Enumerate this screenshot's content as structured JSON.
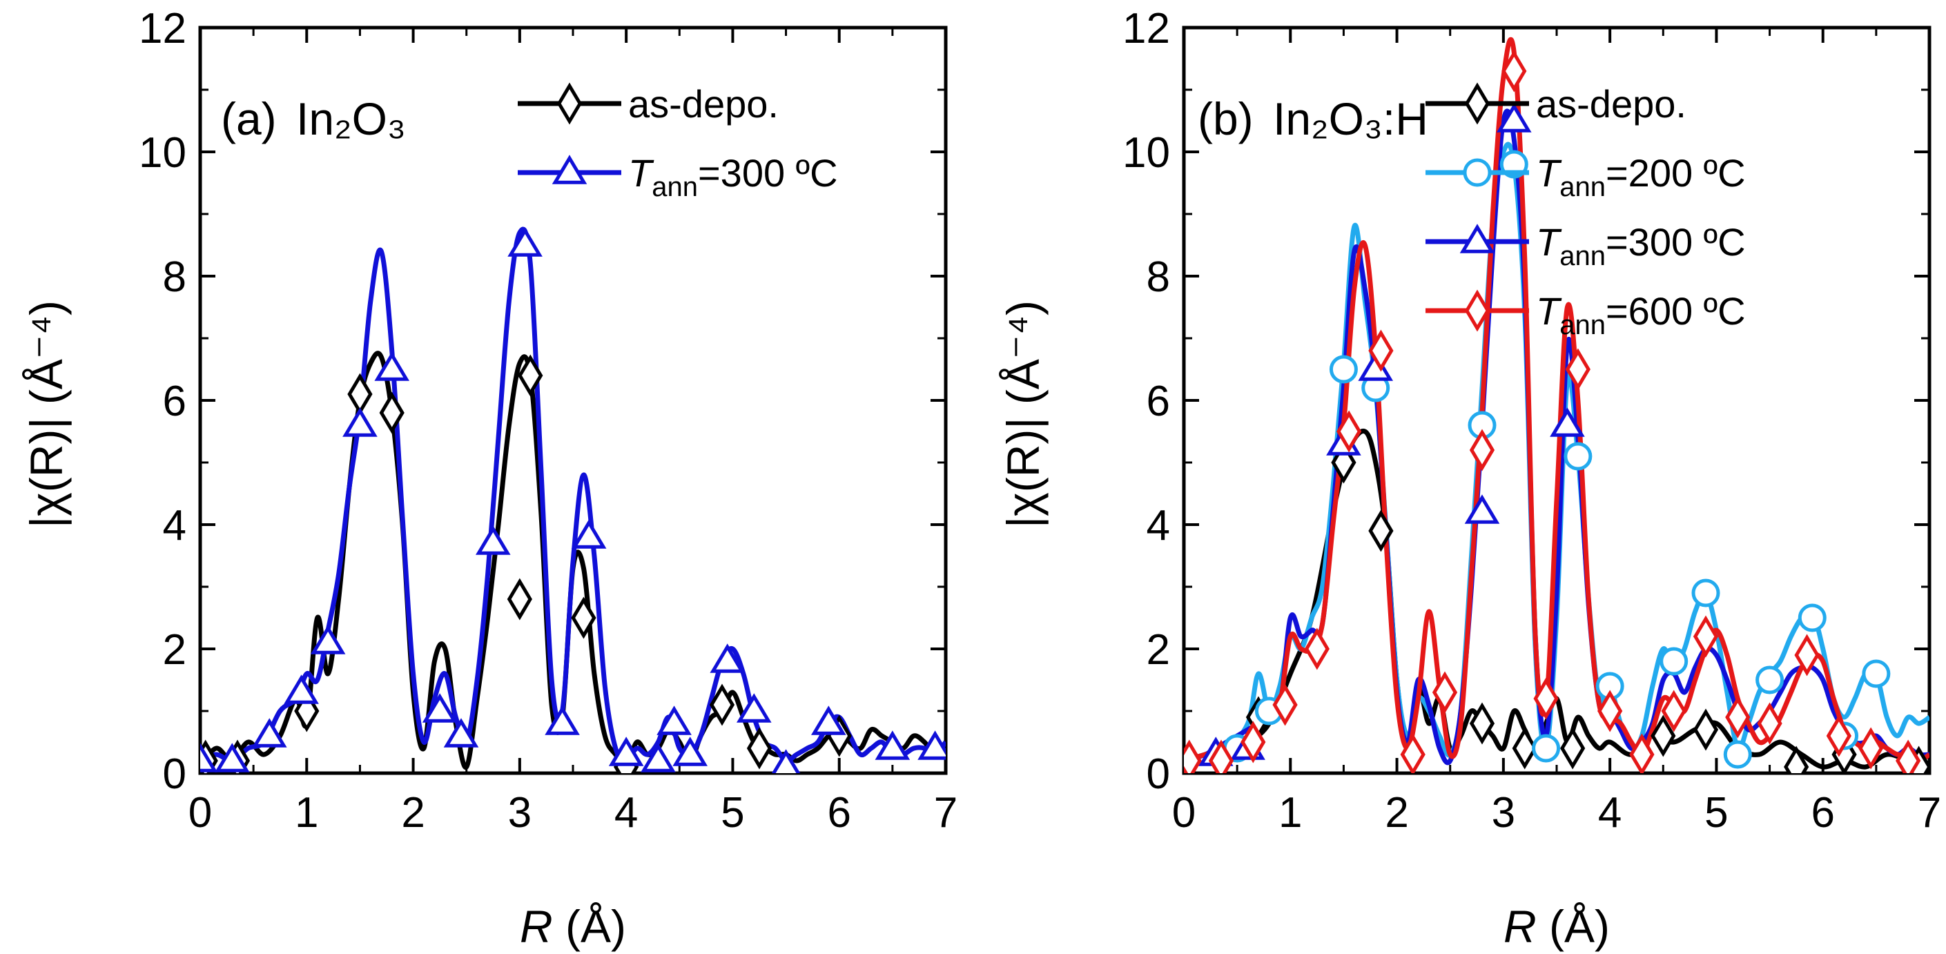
{
  "chart_data": [
    {
      "type": "line",
      "panel_label": "(a)",
      "panel_material": "In₂O₃",
      "xlabel": "R (Å)",
      "xlabel_var": "R",
      "xlabel_unit": "(Å)",
      "ylabel": "|χ(R)| (Å⁻⁴)",
      "xlim": [
        0,
        7
      ],
      "ylim": [
        0,
        12
      ],
      "xticks": [
        "0",
        "1",
        "2",
        "3",
        "4",
        "5",
        "6",
        "7"
      ],
      "yticks": [
        "0",
        "2",
        "4",
        "6",
        "8",
        "10",
        "12"
      ],
      "legend_position": "top-right",
      "series": [
        {
          "name": "as-depo.",
          "label_main": "as-depo.",
          "color": "#000000",
          "marker": "diamond",
          "x": [
            0.0,
            0.15,
            0.3,
            0.45,
            0.6,
            0.75,
            0.9,
            1.0,
            1.1,
            1.2,
            1.3,
            1.4,
            1.5,
            1.6,
            1.7,
            1.8,
            1.9,
            2.0,
            2.1,
            2.2,
            2.3,
            2.4,
            2.5,
            2.6,
            2.7,
            2.8,
            2.9,
            3.0,
            3.1,
            3.2,
            3.3,
            3.4,
            3.5,
            3.6,
            3.7,
            3.8,
            3.9,
            4.0,
            4.1,
            4.2,
            4.3,
            4.4,
            4.5,
            4.6,
            4.7,
            4.8,
            4.9,
            5.0,
            5.1,
            5.2,
            5.3,
            5.4,
            5.5,
            5.6,
            5.7,
            5.8,
            5.9,
            6.0,
            6.1,
            6.2,
            6.3,
            6.4,
            6.5,
            6.6,
            6.7,
            6.8,
            6.9,
            7.0
          ],
          "y": [
            0.1,
            0.4,
            0.2,
            0.5,
            0.3,
            0.6,
            1.2,
            0.8,
            2.5,
            1.6,
            2.8,
            4.6,
            6.0,
            6.6,
            6.7,
            5.8,
            4.0,
            1.3,
            0.4,
            1.8,
            2.0,
            0.8,
            0.1,
            1.2,
            2.5,
            4.0,
            5.6,
            6.6,
            6.4,
            4.2,
            1.1,
            0.9,
            3.3,
            3.3,
            1.6,
            0.6,
            0.3,
            0.1,
            0.5,
            0.3,
            0.4,
            0.7,
            0.5,
            0.2,
            0.6,
            0.9,
            1.0,
            1.3,
            0.9,
            0.5,
            0.4,
            0.3,
            0.3,
            0.2,
            0.3,
            0.4,
            0.6,
            0.7,
            0.5,
            0.4,
            0.7,
            0.6,
            0.5,
            0.4,
            0.6,
            0.5,
            0.3,
            0.5
          ],
          "marker_x": [
            0.05,
            0.35,
            1.0,
            1.5,
            1.8,
            3.0,
            3.1,
            3.6,
            4.0,
            4.9,
            5.25,
            6.0
          ],
          "marker_y": [
            0.2,
            0.2,
            1.0,
            6.1,
            5.8,
            2.8,
            6.4,
            2.5,
            0.1,
            1.1,
            0.4,
            0.6
          ]
        },
        {
          "name": "Tann=300 ºC",
          "label_var": "T",
          "label_sub": "ann",
          "label_rest": "=300 ºC",
          "color": "#1010d8",
          "marker": "triangle",
          "x": [
            0.0,
            0.15,
            0.3,
            0.45,
            0.6,
            0.75,
            0.9,
            1.0,
            1.1,
            1.2,
            1.3,
            1.4,
            1.5,
            1.6,
            1.7,
            1.8,
            1.9,
            2.0,
            2.1,
            2.2,
            2.3,
            2.4,
            2.5,
            2.6,
            2.7,
            2.8,
            2.9,
            3.0,
            3.1,
            3.2,
            3.3,
            3.4,
            3.5,
            3.6,
            3.7,
            3.8,
            3.9,
            4.0,
            4.1,
            4.2,
            4.3,
            4.4,
            4.5,
            4.6,
            4.7,
            4.8,
            4.9,
            5.0,
            5.1,
            5.2,
            5.3,
            5.4,
            5.5,
            5.6,
            5.7,
            5.8,
            5.9,
            6.0,
            6.1,
            6.2,
            6.3,
            6.4,
            6.5,
            6.6,
            6.7,
            6.8,
            6.9,
            7.0
          ],
          "y": [
            0.2,
            0.3,
            0.2,
            0.4,
            0.5,
            1.0,
            1.2,
            1.6,
            1.5,
            2.3,
            3.2,
            4.6,
            5.8,
            7.6,
            8.4,
            6.8,
            4.1,
            1.6,
            0.5,
            1.2,
            1.6,
            0.9,
            0.5,
            1.5,
            3.2,
            5.4,
            7.6,
            8.7,
            8.2,
            4.9,
            1.5,
            1.0,
            3.4,
            4.8,
            3.5,
            1.4,
            0.4,
            0.2,
            0.4,
            0.3,
            0.5,
            0.9,
            0.4,
            0.3,
            0.6,
            1.2,
            1.8,
            2.0,
            1.6,
            0.9,
            0.5,
            0.4,
            0.2,
            0.3,
            0.4,
            0.5,
            0.8,
            0.9,
            0.6,
            0.3,
            0.4,
            0.5,
            0.3,
            0.3,
            0.4,
            0.4,
            0.3,
            0.5
          ],
          "marker_x": [
            0.0,
            0.3,
            0.65,
            0.95,
            1.2,
            1.5,
            1.8,
            2.25,
            2.45,
            2.75,
            3.05,
            3.4,
            3.65,
            4.0,
            4.3,
            4.45,
            4.6,
            4.95,
            5.2,
            5.5,
            5.9,
            6.5,
            6.9
          ],
          "marker_y": [
            0.2,
            0.2,
            0.6,
            1.3,
            2.1,
            5.6,
            6.5,
            1.0,
            0.6,
            3.7,
            8.5,
            0.8,
            3.8,
            0.3,
            0.2,
            0.8,
            0.3,
            1.8,
            1.0,
            0.1,
            0.8,
            0.4,
            0.4
          ]
        }
      ]
    },
    {
      "type": "line",
      "panel_label": "(b)",
      "panel_material": "In₂O₃:H",
      "xlabel": "R (Å)",
      "xlabel_var": "R",
      "xlabel_unit": "(Å)",
      "ylabel": "|χ(R)| (Å⁻⁴)",
      "xlim": [
        0,
        7
      ],
      "ylim": [
        0,
        12
      ],
      "xticks": [
        "0",
        "1",
        "2",
        "3",
        "4",
        "5",
        "6",
        "7"
      ],
      "yticks": [
        "0",
        "2",
        "4",
        "6",
        "8",
        "10",
        "12"
      ],
      "legend_position": "top-right",
      "series": [
        {
          "name": "as-depo.",
          "label_main": "as-depo.",
          "color": "#000000",
          "marker": "diamond",
          "x": [
            0.0,
            0.2,
            0.4,
            0.6,
            0.8,
            1.0,
            1.2,
            1.4,
            1.55,
            1.7,
            1.8,
            1.9,
            2.0,
            2.1,
            2.2,
            2.3,
            2.4,
            2.5,
            2.6,
            2.7,
            2.8,
            2.9,
            3.0,
            3.1,
            3.2,
            3.3,
            3.4,
            3.5,
            3.6,
            3.7,
            3.8,
            3.9,
            4.0,
            4.2,
            4.4,
            4.6,
            4.8,
            5.0,
            5.2,
            5.4,
            5.6,
            5.8,
            6.0,
            6.2,
            6.4,
            6.6,
            6.8,
            7.0
          ],
          "y": [
            0.2,
            0.3,
            0.4,
            0.5,
            0.8,
            1.6,
            2.5,
            4.2,
            5.2,
            5.5,
            5.0,
            3.8,
            1.5,
            0.5,
            1.4,
            0.8,
            1.2,
            0.4,
            0.6,
            1.0,
            0.8,
            0.6,
            0.4,
            1.0,
            0.7,
            0.4,
            0.8,
            1.2,
            0.5,
            0.9,
            0.6,
            0.4,
            0.5,
            0.3,
            0.6,
            0.5,
            0.7,
            0.8,
            0.4,
            0.3,
            0.5,
            0.3,
            0.1,
            0.2,
            0.1,
            0.3,
            0.2,
            0.1
          ],
          "marker_x": [
            0.7,
            1.5,
            1.85,
            2.8,
            3.2,
            3.65,
            4.5,
            4.9,
            5.75,
            6.2,
            6.9
          ],
          "marker_y": [
            0.9,
            5.0,
            3.9,
            0.8,
            0.4,
            0.4,
            0.6,
            0.7,
            0.1,
            0.3,
            0.1
          ]
        },
        {
          "name": "Tann=200 ºC",
          "label_var": "T",
          "label_sub": "ann",
          "label_rest": "=200 ºC",
          "color": "#22aaee",
          "marker": "circle",
          "x": [
            0.0,
            0.2,
            0.4,
            0.6,
            0.7,
            0.8,
            0.9,
            1.0,
            1.1,
            1.2,
            1.3,
            1.4,
            1.5,
            1.6,
            1.7,
            1.8,
            1.9,
            2.0,
            2.1,
            2.2,
            2.3,
            2.4,
            2.5,
            2.6,
            2.7,
            2.8,
            2.9,
            3.0,
            3.1,
            3.2,
            3.3,
            3.4,
            3.5,
            3.6,
            3.7,
            3.8,
            3.9,
            4.0,
            4.1,
            4.2,
            4.3,
            4.4,
            4.5,
            4.6,
            4.7,
            4.8,
            4.9,
            5.0,
            5.1,
            5.2,
            5.3,
            5.4,
            5.5,
            5.6,
            5.7,
            5.8,
            5.9,
            6.0,
            6.1,
            6.2,
            6.3,
            6.4,
            6.5,
            6.6,
            6.7,
            6.8,
            6.9,
            7.0
          ],
          "y": [
            0.2,
            0.3,
            0.4,
            0.8,
            1.6,
            1.0,
            1.4,
            2.2,
            2.0,
            2.5,
            3.0,
            4.6,
            6.6,
            8.8,
            7.6,
            6.2,
            3.9,
            1.5,
            0.6,
            1.2,
            1.0,
            0.6,
            0.3,
            1.0,
            3.5,
            6.2,
            8.9,
            10.0,
            9.8,
            7.4,
            2.0,
            0.4,
            2.5,
            6.3,
            5.1,
            2.8,
            1.2,
            1.4,
            0.8,
            0.4,
            0.6,
            1.4,
            2.0,
            1.7,
            2.0,
            2.6,
            2.9,
            2.3,
            1.3,
            0.4,
            0.8,
            1.3,
            1.6,
            1.8,
            2.2,
            2.5,
            2.6,
            2.0,
            1.2,
            0.9,
            1.2,
            1.6,
            1.6,
            0.9,
            0.6,
            0.9,
            0.8,
            0.9
          ],
          "marker_x": [
            0.5,
            0.8,
            1.5,
            1.8,
            2.8,
            3.1,
            3.4,
            3.7,
            4.0,
            4.6,
            4.9,
            5.2,
            5.5,
            5.9,
            6.2,
            6.5
          ],
          "marker_y": [
            0.4,
            1.0,
            6.5,
            6.2,
            5.6,
            9.8,
            0.4,
            5.1,
            1.4,
            1.8,
            2.9,
            0.3,
            1.5,
            2.5,
            0.6,
            1.6
          ]
        },
        {
          "name": "Tann=300 ºC",
          "label_var": "T",
          "label_sub": "ann",
          "label_rest": "=300 ºC",
          "color": "#1010d8",
          "marker": "triangle",
          "x": [
            0.0,
            0.2,
            0.4,
            0.6,
            0.8,
            0.9,
            1.0,
            1.1,
            1.2,
            1.3,
            1.4,
            1.5,
            1.6,
            1.7,
            1.8,
            1.9,
            2.0,
            2.1,
            2.2,
            2.3,
            2.4,
            2.5,
            2.6,
            2.7,
            2.8,
            2.9,
            3.0,
            3.1,
            3.2,
            3.3,
            3.4,
            3.5,
            3.6,
            3.7,
            3.8,
            3.9,
            4.0,
            4.1,
            4.2,
            4.3,
            4.4,
            4.5,
            4.6,
            4.7,
            4.8,
            4.9,
            5.0,
            5.1,
            5.2,
            5.3,
            5.4,
            5.5,
            5.6,
            5.7,
            5.8,
            5.9,
            6.0,
            6.1,
            6.2,
            6.3,
            6.4,
            6.5,
            6.6,
            6.7,
            6.8,
            6.9,
            7.0
          ],
          "y": [
            0.2,
            0.3,
            0.5,
            0.7,
            0.9,
            1.0,
            2.5,
            2.2,
            2.3,
            2.4,
            4.2,
            6.2,
            8.4,
            7.8,
            6.3,
            3.8,
            1.3,
            0.5,
            1.5,
            1.1,
            0.4,
            0.2,
            1.0,
            3.0,
            5.6,
            8.4,
            10.5,
            10.2,
            7.8,
            2.2,
            0.6,
            2.9,
            6.9,
            5.4,
            2.7,
            1.1,
            1.0,
            0.7,
            0.4,
            0.5,
            0.8,
            1.5,
            1.6,
            1.3,
            1.7,
            2.0,
            1.9,
            1.5,
            1.0,
            0.7,
            0.8,
            1.0,
            1.3,
            1.6,
            1.7,
            1.7,
            1.5,
            1.0,
            0.7,
            0.5,
            0.5,
            0.6,
            0.4,
            0.3,
            0.4,
            0.3,
            0.3
          ],
          "marker_x": [
            0.3,
            0.6,
            1.5,
            1.8,
            2.8,
            3.1,
            3.6
          ],
          "marker_y": [
            0.3,
            0.4,
            5.3,
            6.5,
            4.2,
            10.5,
            5.6
          ]
        },
        {
          "name": "Tann=600 ºC",
          "label_var": "T",
          "label_sub": "ann",
          "label_rest": "=600 ºC",
          "color": "#e51818",
          "marker": "diamond",
          "x": [
            0.0,
            0.2,
            0.4,
            0.6,
            0.8,
            0.9,
            1.0,
            1.1,
            1.2,
            1.3,
            1.4,
            1.5,
            1.6,
            1.7,
            1.8,
            1.9,
            2.0,
            2.1,
            2.2,
            2.3,
            2.4,
            2.5,
            2.6,
            2.7,
            2.8,
            2.9,
            3.0,
            3.1,
            3.2,
            3.3,
            3.4,
            3.5,
            3.6,
            3.7,
            3.8,
            3.9,
            4.0,
            4.1,
            4.2,
            4.3,
            4.4,
            4.5,
            4.6,
            4.7,
            4.8,
            4.9,
            5.0,
            5.1,
            5.2,
            5.3,
            5.4,
            5.5,
            5.6,
            5.7,
            5.8,
            5.9,
            6.0,
            6.1,
            6.2,
            6.3,
            6.4,
            6.5,
            6.6,
            6.7,
            6.8,
            6.9,
            7.0
          ],
          "y": [
            0.2,
            0.3,
            0.4,
            0.5,
            1.0,
            1.1,
            2.2,
            2.0,
            2.0,
            2.4,
            4.0,
            5.6,
            7.8,
            8.5,
            6.8,
            3.7,
            1.2,
            0.4,
            1.2,
            2.6,
            1.4,
            0.3,
            0.8,
            3.2,
            5.8,
            9.0,
            11.2,
            11.6,
            8.3,
            2.2,
            1.1,
            4.4,
            7.5,
            6.0,
            2.8,
            1.1,
            0.9,
            0.8,
            0.5,
            0.3,
            0.7,
            1.2,
            1.1,
            1.0,
            1.5,
            2.0,
            2.3,
            1.9,
            1.2,
            0.8,
            0.5,
            0.6,
            0.9,
            1.3,
            1.7,
            1.9,
            1.8,
            1.2,
            0.7,
            0.5,
            0.4,
            0.5,
            0.4,
            0.3,
            0.3,
            0.2,
            0.3
          ],
          "marker_x": [
            0.05,
            0.35,
            0.65,
            0.95,
            1.25,
            1.55,
            1.85,
            2.15,
            2.45,
            2.8,
            3.1,
            3.4,
            3.7,
            4.0,
            4.3,
            4.6,
            4.9,
            5.2,
            5.5,
            5.85,
            6.15,
            6.45,
            6.8
          ],
          "marker_y": [
            0.2,
            0.2,
            0.5,
            1.1,
            2.0,
            5.5,
            6.8,
            0.3,
            1.3,
            5.2,
            11.3,
            1.2,
            6.5,
            1.0,
            0.3,
            1.0,
            2.2,
            0.9,
            0.8,
            1.9,
            0.6,
            0.4,
            0.2
          ]
        }
      ]
    }
  ]
}
